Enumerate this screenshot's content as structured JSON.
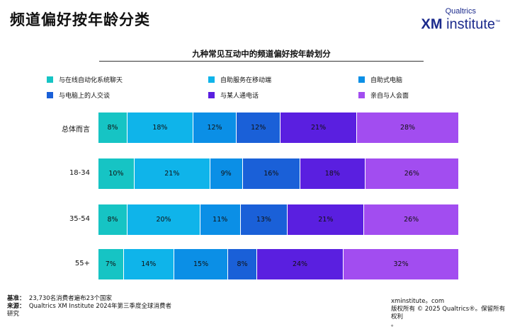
{
  "page": {
    "title": "频道偏好按年龄分类",
    "brand_top": "Qualtrics",
    "brand_xm": "XM",
    "brand_rest": " institute",
    "brand_tm": "™",
    "footer": {
      "base_label": "基准：",
      "base_text": "23,730名消费者遍布23个国家",
      "source_label": "来源：",
      "source_text": "Qualtrics XM Institute 2024年第三季度全球消费者",
      "source_cont": "研究",
      "site": "xminstitute。com",
      "copyright": "版权所有 © 2025 Qualtrics®。保留所有权利",
      "copyright_cont": "。"
    }
  },
  "chart_data": {
    "type": "bar",
    "orientation": "horizontal",
    "stacked": true,
    "title": "九种常见互动中的频道偏好按年龄划分",
    "legend_position": "top",
    "categories": [
      "总体而言",
      "18-34",
      "35-54",
      "55+"
    ],
    "series": [
      {
        "name": "与在线自动化系统聊天",
        "color": "#16c4c4",
        "values": [
          8,
          10,
          8,
          7
        ]
      },
      {
        "name": "自助服务在移动端",
        "color": "#0fb4ea",
        "values": [
          18,
          21,
          20,
          14
        ]
      },
      {
        "name": "自助式电脑",
        "color": "#0b8fe6",
        "values": [
          12,
          9,
          11,
          15
        ]
      },
      {
        "name": "与电脑上的人交谈",
        "color": "#1a60d8",
        "values": [
          12,
          16,
          13,
          8
        ]
      },
      {
        "name": "与某人通电话",
        "color": "#5a1fe0",
        "values": [
          21,
          18,
          21,
          24
        ]
      },
      {
        "name": "亲自与人会面",
        "color": "#a24df0",
        "values": [
          28,
          26,
          26,
          32
        ]
      }
    ],
    "value_suffix": "%"
  }
}
